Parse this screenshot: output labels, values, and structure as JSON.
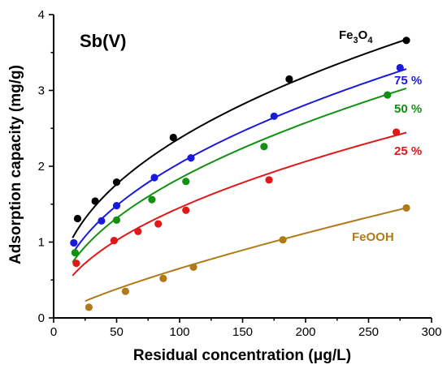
{
  "chart_data": {
    "type": "scatter",
    "title": "Sb(V)",
    "xlabel": "Residual concentration (μg/L)",
    "ylabel": "Adsorption capacity (mg/g)",
    "xlim": [
      0,
      300
    ],
    "ylim": [
      0,
      4
    ],
    "xticks": [
      "0",
      "50",
      "100",
      "150",
      "200",
      "250",
      "300"
    ],
    "yticks": [
      "0",
      "1",
      "2",
      "3",
      "4"
    ],
    "grid": false,
    "series": [
      {
        "name": "Fe3O4",
        "label_base": "Fe",
        "label_sub": "3",
        "label_mid": "O",
        "label_sub2": "4",
        "color": "#000000",
        "points": [
          [
            19,
            1.31
          ],
          [
            33,
            1.54
          ],
          [
            50,
            1.79
          ],
          [
            95,
            2.38
          ],
          [
            187,
            3.15
          ],
          [
            280,
            3.66
          ]
        ],
        "fit": {
          "k": 0.333,
          "n": 0.426,
          "x_from": 15,
          "x_to": 280
        }
      },
      {
        "name": "75 %",
        "color": "#1a1adc",
        "points": [
          [
            16,
            0.99
          ],
          [
            38,
            1.28
          ],
          [
            50,
            1.48
          ],
          [
            80,
            1.85
          ],
          [
            109,
            2.11
          ],
          [
            175,
            2.66
          ],
          [
            275,
            3.3
          ]
        ],
        "fit": {
          "k": 0.243,
          "n": 0.462,
          "x_from": 15,
          "x_to": 280
        }
      },
      {
        "name": "50 %",
        "color": "#129012",
        "points": [
          [
            17,
            0.86
          ],
          [
            50,
            1.29
          ],
          [
            78,
            1.56
          ],
          [
            105,
            1.8
          ],
          [
            167,
            2.26
          ],
          [
            265,
            2.94
          ]
        ],
        "fit": {
          "k": 0.198,
          "n": 0.484,
          "x_from": 15,
          "x_to": 280
        }
      },
      {
        "name": "25 %",
        "color": "#e01818",
        "points": [
          [
            18,
            0.72
          ],
          [
            48,
            1.02
          ],
          [
            67,
            1.14
          ],
          [
            83,
            1.24
          ],
          [
            105,
            1.42
          ],
          [
            171,
            1.82
          ],
          [
            272,
            2.45
          ]
        ],
        "fit": {
          "k": 0.142,
          "n": 0.505,
          "x_from": 15,
          "x_to": 280
        }
      },
      {
        "name": "FeOOH",
        "color": "#b07a18",
        "points": [
          [
            28,
            0.14
          ],
          [
            57,
            0.35
          ],
          [
            87,
            0.52
          ],
          [
            111,
            0.67
          ],
          [
            182,
            1.03
          ],
          [
            280,
            1.45
          ]
        ],
        "fit": {
          "k": 0.0182,
          "n": 0.777,
          "x_from": 25,
          "x_to": 280
        }
      }
    ]
  }
}
